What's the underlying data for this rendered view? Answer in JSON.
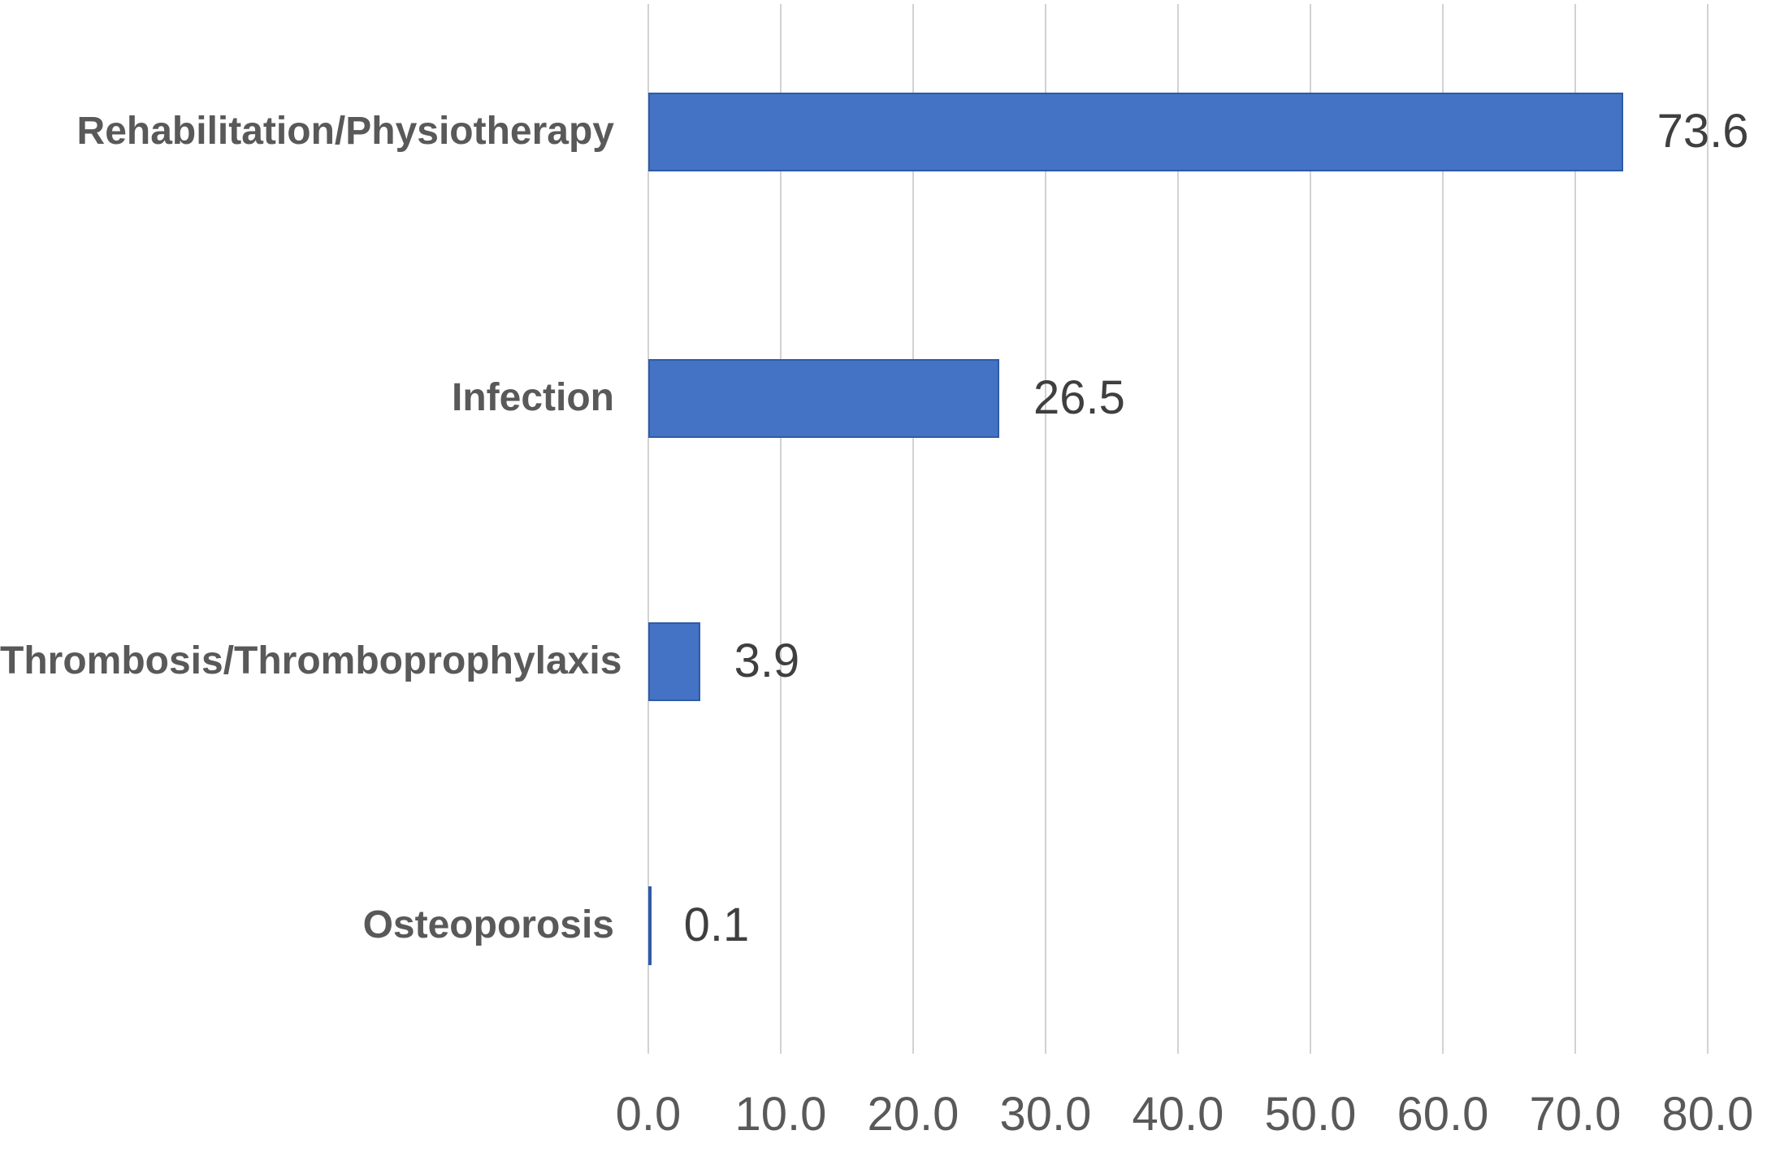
{
  "chart_data": {
    "type": "bar",
    "orientation": "horizontal",
    "title": "",
    "xlabel": "",
    "ylabel": "",
    "categories": [
      "Rehabilitation/Physiotherapy",
      "Infection",
      "Thrombosis/Thromboprophylaxis",
      "Osteoporosis"
    ],
    "values": [
      73.6,
      26.5,
      3.9,
      0.1
    ],
    "value_labels": [
      "73.6",
      "26.5",
      "3.9",
      "0.1"
    ],
    "x_ticks": [
      0,
      10,
      20,
      30,
      40,
      50,
      60,
      70,
      80
    ],
    "x_tick_labels": [
      "0.0",
      "10.0",
      "20.0",
      "30.0",
      "40.0",
      "50.0",
      "60.0",
      "70.0",
      "80.0"
    ],
    "xlim": [
      0,
      80
    ],
    "grid": "vertical-only",
    "legend": "none",
    "colors": {
      "bar_fill": "#4472C4",
      "bar_border": "#2F5BA7",
      "gridline": "#d2d2d2",
      "category_text": "#595959",
      "value_text": "#3f3f3f",
      "tick_text": "#595959",
      "background": "#ffffff"
    }
  }
}
